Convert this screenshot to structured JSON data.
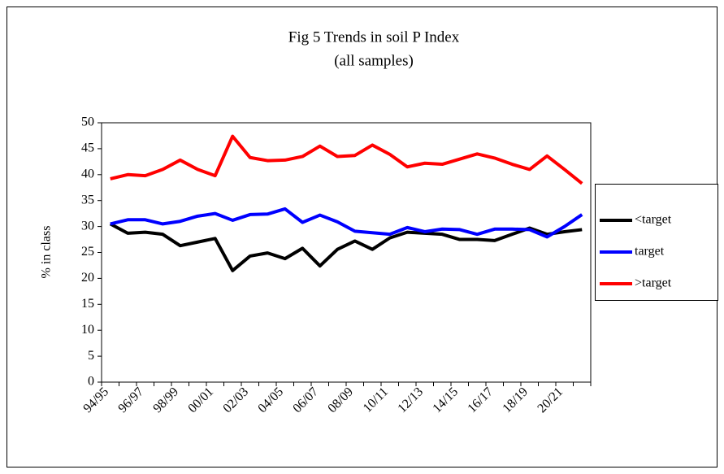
{
  "chart_data": {
    "type": "line",
    "title": "Fig 5 Trends in soil P Index",
    "subtitle": "(all samples)",
    "y_label": "% in class",
    "categories": [
      "94/95",
      null,
      "96/97",
      null,
      "98/99",
      null,
      "00/01",
      null,
      "02/03",
      null,
      "04/05",
      null,
      "06/07",
      null,
      "08/09",
      null,
      "10/11",
      null,
      "12/13",
      null,
      "14/15",
      null,
      "16/17",
      null,
      "18/19",
      null,
      "20/21",
      null
    ],
    "series": [
      {
        "name": "<target",
        "color": "#000000",
        "values": [
          30.5,
          28.7,
          28.9,
          28.5,
          26.3,
          27,
          27.7,
          21.5,
          24.3,
          24.9,
          23.8,
          25.8,
          22.4,
          25.6,
          27.2,
          25.6,
          27.8,
          28.9,
          28.7,
          28.5,
          27.5,
          27.5,
          27.3,
          28.5,
          29.7,
          28.5,
          29,
          29.4
        ]
      },
      {
        "name": "target",
        "color": "#0000ff",
        "values": [
          30.5,
          31.3,
          31.3,
          30.5,
          31,
          32,
          32.5,
          31.2,
          32.3,
          32.4,
          33.4,
          30.8,
          32.2,
          30.9,
          29.1,
          28.8,
          28.5,
          29.8,
          29,
          29.5,
          29.4,
          28.5,
          29.5,
          29.5,
          29.4,
          28,
          30,
          32.3
        ]
      },
      {
        "name": ">target",
        "color": "#ff0000",
        "values": [
          39.2,
          40,
          39.8,
          41,
          42.8,
          41,
          39.8,
          47.4,
          43.3,
          42.7,
          42.8,
          43.5,
          45.5,
          43.5,
          43.7,
          45.7,
          43.9,
          41.5,
          42.2,
          42,
          43,
          44,
          43.2,
          42,
          41,
          43.6,
          41,
          38.3
        ]
      }
    ],
    "ylim": [
      0,
      50
    ],
    "yticks": [
      0,
      5,
      10,
      15,
      20,
      25,
      30,
      35,
      40,
      45,
      50
    ],
    "grid": false,
    "legend": "right"
  }
}
